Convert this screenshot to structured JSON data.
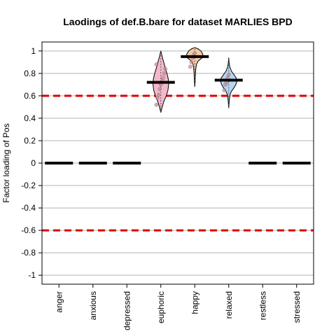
{
  "chart_data": {
    "type": "violin",
    "title": "Laodings of def.B.bare for dataset MARLIES BPD",
    "xlabel": "",
    "ylabel": "Factor loading of Pos",
    "ylim": [
      -1.08,
      1.08
    ],
    "yticks": [
      -1,
      -0.8,
      -0.6,
      -0.4,
      -0.2,
      0,
      0.2,
      0.4,
      0.6,
      0.8,
      1
    ],
    "ytick_labels": [
      "-1",
      "-0.8",
      "-0.6",
      "-0.4",
      "-0.2",
      "0",
      "0.2",
      "0.4",
      "0.6",
      "0.8",
      "1"
    ],
    "grid": true,
    "reference_lines": [
      {
        "y": 0.6,
        "color": "#e00000",
        "style": "dashed"
      },
      {
        "y": -0.6,
        "color": "#e00000",
        "style": "dashed"
      }
    ],
    "categories": [
      "anger",
      "anxious",
      "depressed",
      "euphoric",
      "happy",
      "relaxed",
      "restless",
      "stressed"
    ],
    "medians": [
      0,
      0,
      0,
      0.72,
      0.95,
      0.74,
      0,
      0
    ],
    "violins": [
      {
        "category": "euphoric",
        "fill": "#f4b8cc",
        "min": 0.45,
        "max": 1.0,
        "median": 0.72,
        "profile": [
          [
            0.45,
            0.0
          ],
          [
            0.5,
            0.08
          ],
          [
            0.55,
            0.18
          ],
          [
            0.6,
            0.32
          ],
          [
            0.65,
            0.42
          ],
          [
            0.7,
            0.46
          ],
          [
            0.75,
            0.44
          ],
          [
            0.8,
            0.36
          ],
          [
            0.85,
            0.26
          ],
          [
            0.9,
            0.17
          ],
          [
            0.95,
            0.08
          ],
          [
            1.0,
            0.0
          ]
        ],
        "points": [
          0.52,
          0.58,
          0.61,
          0.66,
          0.7,
          0.73,
          0.76,
          0.8,
          0.84,
          0.88
        ]
      },
      {
        "category": "happy",
        "fill": "#f6cba6",
        "min": 0.68,
        "max": 1.03,
        "median": 0.95,
        "profile": [
          [
            0.68,
            0.0
          ],
          [
            0.72,
            0.02
          ],
          [
            0.76,
            0.03
          ],
          [
            0.8,
            0.04
          ],
          [
            0.84,
            0.06
          ],
          [
            0.88,
            0.1
          ],
          [
            0.91,
            0.2
          ],
          [
            0.94,
            0.44
          ],
          [
            0.97,
            0.48
          ],
          [
            1.0,
            0.36
          ],
          [
            1.02,
            0.18
          ],
          [
            1.03,
            0.0
          ]
        ],
        "points": [
          0.86,
          0.9,
          0.94,
          0.96,
          0.98
        ]
      },
      {
        "category": "relaxed",
        "fill": "#b4d6f0",
        "min": 0.49,
        "max": 0.94,
        "median": 0.74,
        "profile": [
          [
            0.49,
            0.0
          ],
          [
            0.53,
            0.02
          ],
          [
            0.57,
            0.04
          ],
          [
            0.61,
            0.08
          ],
          [
            0.64,
            0.16
          ],
          [
            0.67,
            0.3
          ],
          [
            0.7,
            0.42
          ],
          [
            0.73,
            0.48
          ],
          [
            0.76,
            0.44
          ],
          [
            0.79,
            0.3
          ],
          [
            0.82,
            0.16
          ],
          [
            0.86,
            0.06
          ],
          [
            0.9,
            0.02
          ],
          [
            0.94,
            0.0
          ]
        ],
        "points": [
          0.65,
          0.7,
          0.72,
          0.76,
          0.79
        ]
      }
    ]
  }
}
